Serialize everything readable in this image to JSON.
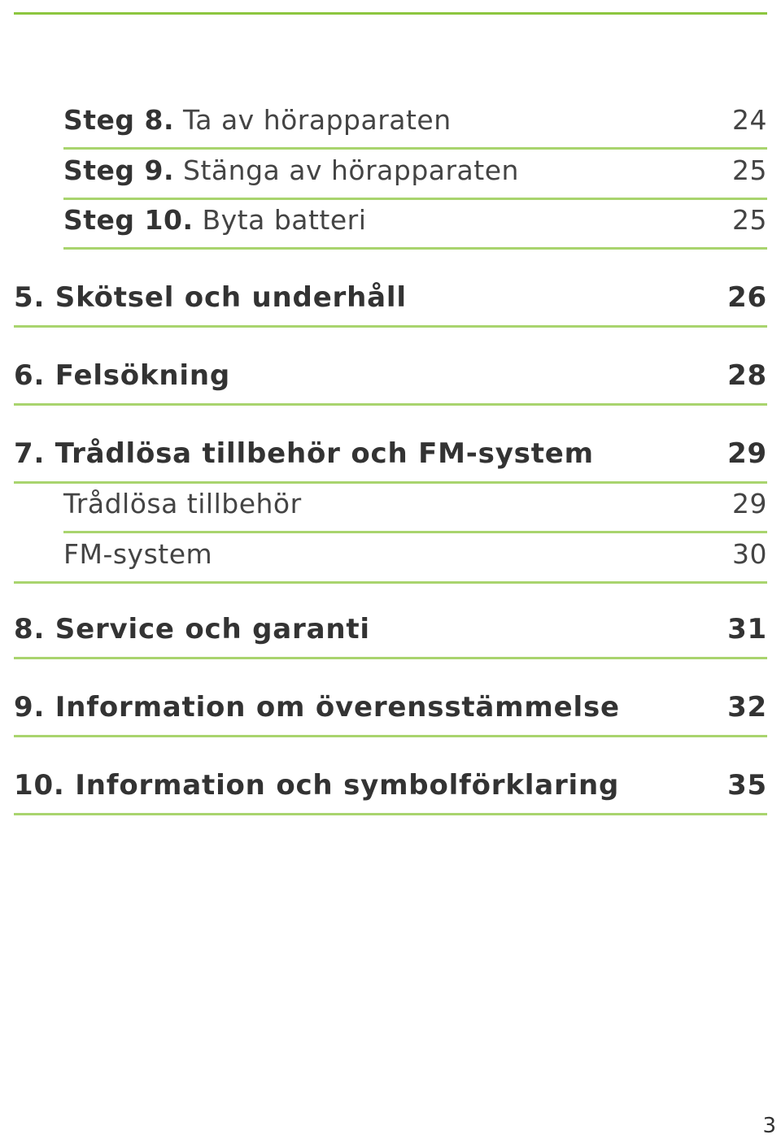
{
  "toc": {
    "steps": [
      {
        "prefix": "Steg 8.",
        "text": "Ta av hörapparaten",
        "page": "24"
      },
      {
        "prefix": "Steg 9.",
        "text": "Stänga av hörapparaten",
        "page": "25"
      },
      {
        "prefix": "Steg 10.",
        "text": "Byta batteri",
        "page": "25"
      }
    ],
    "sections": [
      {
        "label": "5. Skötsel och underhåll",
        "page": "26"
      },
      {
        "label": "6. Felsökning",
        "page": "28"
      },
      {
        "label": "7. Trådlösa tillbehör och FM-system",
        "page": "29"
      }
    ],
    "subsections": [
      {
        "label": "Trådlösa tillbehör",
        "page": "29"
      },
      {
        "label": "FM-system",
        "page": "30"
      }
    ],
    "sections_after": [
      {
        "label": "8. Service och garanti",
        "page": "31"
      },
      {
        "label": "9. Information om överensstämmelse",
        "page": "32"
      },
      {
        "label": "10. Information och symbolförklaring",
        "page": "35"
      }
    ]
  },
  "page_number": "3"
}
